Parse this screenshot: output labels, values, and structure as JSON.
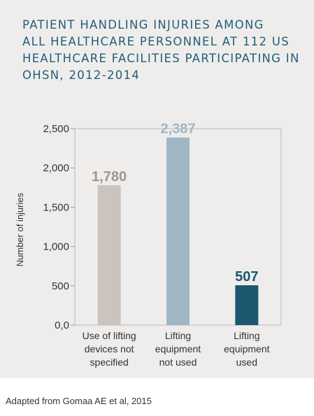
{
  "title_lines": [
    "PATIENT HANDLING INJURIES AMONG",
    "ALL HEALTHCARE PERSONNEL AT 112 US",
    "HEALTHCARE FACILITIES PARTICIPATING IN",
    "OHSN, 2012-2014"
  ],
  "source": "Adapted from Gomaa AE et al, 2015",
  "chart_data": {
    "type": "bar",
    "title": "PATIENT HANDLING INJURIES AMONG ALL HEALTHCARE PERSONNEL AT 112 US HEALTHCARE FACILITIES PARTICIPATING IN OHSN, 2012-2014",
    "categories": [
      [
        "Use of lifting",
        "devices not",
        "specified"
      ],
      [
        "Lifting",
        "equipment",
        "not used"
      ],
      [
        "Lifting",
        "equipment",
        "used"
      ]
    ],
    "values": [
      1780,
      2387,
      507
    ],
    "value_labels": [
      "1,780",
      "2,387",
      "507"
    ],
    "colors": [
      "#cbc3be",
      "#9fb7c5",
      "#1d566f"
    ],
    "value_label_colors": [
      "#9f9690",
      "#9fb7c5",
      "#1d566f"
    ],
    "ylabel": "Number of injuries",
    "ylim": [
      0,
      2500
    ],
    "yticks": [
      0,
      500,
      1000,
      1500,
      2000,
      2500
    ],
    "ytick_labels": [
      "0,0",
      "500",
      "1,000",
      "1,500",
      "2,000",
      "2,500"
    ],
    "grid": false
  }
}
